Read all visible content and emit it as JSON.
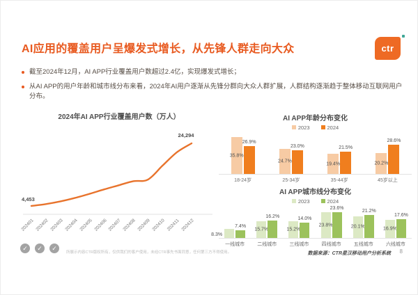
{
  "header": {
    "title": "AI应用的覆盖用户呈爆发式增长，从先锋人群走向大众",
    "logo": {
      "text": "ctr",
      "bg": "#EE6A24",
      "mark_color": "#3FA796"
    }
  },
  "bullets": [
    "截至2024年12月，AI APP行业覆盖用户数超过2.4亿，实现爆发式增长；",
    "从AI APP的用户年龄和城市线分布来看，2024年AI用户逐渐从先锋分群向大众人群扩展，人群结构逐渐趋于整体移动互联网用户分布。"
  ],
  "footer": {
    "copyright": "所展示内容CTR版权所有，仅供我们的客户使用，未经CTR事先书面同意，任何第三方不得使用。",
    "data_source": "数据来源：CTR星汉移动用户分析系统",
    "page_number": "8"
  },
  "colors": {
    "accent_orange": "#E85A20",
    "line_orange": "#E8732C",
    "bar_orange_light": "#F7CBA4",
    "bar_orange_dark": "#F07E1E",
    "bar_green_light": "#DCE9C4",
    "bar_green_dark": "#9CC25C",
    "text_dark": "#564C44"
  },
  "chart_data": [
    {
      "type": "line",
      "title": "2024年AI APP行业覆盖用户数（万人）",
      "x": [
        "202401",
        "202402",
        "202403",
        "202404",
        "202405",
        "202406",
        "202407",
        "202408",
        "202409",
        "202410",
        "202411",
        "202412"
      ],
      "values": [
        4453,
        5050,
        5900,
        7000,
        8300,
        9700,
        11000,
        12300,
        12800,
        17200,
        21500,
        24294
      ],
      "point_labels": {
        "first": "4,453",
        "last": "24,294"
      },
      "line_color": "#E8732C",
      "ylim": [
        0,
        26000
      ],
      "grid": false
    },
    {
      "type": "bar",
      "title": "AI APP年龄分布变化",
      "categories": [
        "18-24岁",
        "25-34岁",
        "35-44岁",
        "45岁以上"
      ],
      "series": [
        {
          "name": "2023",
          "color": "#F7CBA4",
          "values": [
            35.8,
            24.7,
            19.4,
            20.2
          ]
        },
        {
          "name": "2024",
          "color": "#F07E1E",
          "values": [
            26.9,
            23.0,
            21.5,
            28.6
          ]
        }
      ],
      "unit": "%",
      "ylim": [
        0,
        38
      ],
      "legend_position": "top"
    },
    {
      "type": "bar",
      "title": "AI APP城市线分布变化",
      "categories": [
        "一线城市",
        "二线城市",
        "三线城市",
        "四线城市",
        "五线城市",
        "六线城市"
      ],
      "series": [
        {
          "name": "2023",
          "color": "#DCE9C4",
          "values": [
            8.3,
            15.7,
            15.2,
            23.8,
            20.1,
            16.9
          ]
        },
        {
          "name": "2024",
          "color": "#9CC25C",
          "values": [
            7.4,
            16.2,
            14.0,
            23.6,
            21.2,
            17.6
          ]
        }
      ],
      "unit": "%",
      "ylim": [
        0,
        27
      ],
      "legend_position": "top"
    }
  ]
}
